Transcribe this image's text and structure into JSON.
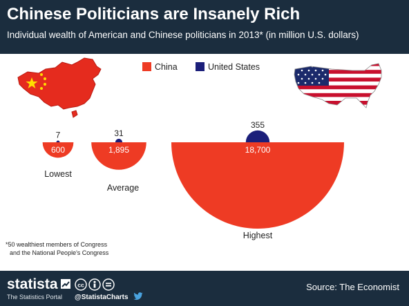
{
  "header": {
    "title": "Chinese Politicians are Insanely Rich",
    "subtitle": "Individual wealth of American and Chinese politicians in 2013* (in million U.S. dollars)"
  },
  "chart_data": {
    "type": "semicircle",
    "title": "Chinese Politicians are Insanely Rich",
    "subtitle": "Individual wealth of American and Chinese politicians in 2013* (in million U.S. dollars)",
    "categories": [
      "Lowest",
      "Average",
      "Highest"
    ],
    "series": [
      {
        "name": "China",
        "color": "#ee3b24",
        "values": [
          600,
          1895,
          18700
        ]
      },
      {
        "name": "United States",
        "color": "#1b1f7a",
        "values": [
          7,
          31,
          355
        ]
      }
    ],
    "value_labels": {
      "China": [
        "600",
        "1,895",
        "18,700"
      ],
      "United States": [
        "7",
        "31",
        "355"
      ]
    },
    "legend": {
      "position": "top-center",
      "items": [
        "China",
        "United States"
      ]
    },
    "footnote_lines": [
      "*50 wealthiest members of Congress",
      "and the National People's Congress"
    ]
  },
  "decorations": {
    "left_map": "china-flag-map-icon",
    "right_map": "usa-flag-map-icon"
  },
  "footer": {
    "brand": "statista",
    "tagline": "The Statistics Portal",
    "handle": "@StatistaCharts",
    "source": "Source: The Economist",
    "icons": [
      "creative-commons-icon",
      "attribution-icon",
      "equals-icon",
      "twitter-icon"
    ]
  },
  "colors": {
    "header_bg": "#1b2d3e",
    "china": "#ee3b24",
    "united_states": "#1b1f7a"
  }
}
